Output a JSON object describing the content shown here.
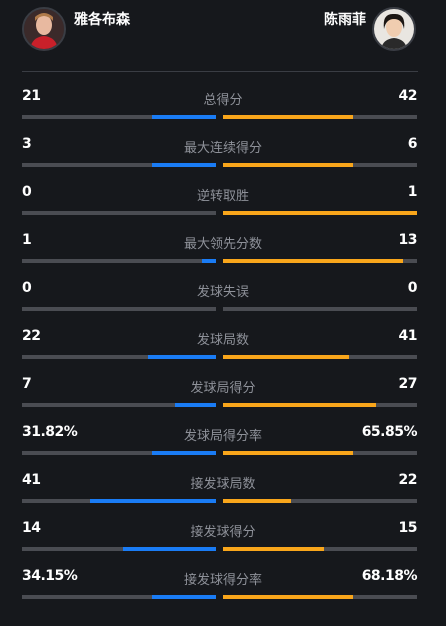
{
  "players": {
    "left": {
      "name": "雅各布森",
      "avatar_icon": "player-photo-icon"
    },
    "right": {
      "name": "陈雨菲",
      "avatar_icon": "player-photo-icon"
    }
  },
  "colors": {
    "left_bar": "#1a7cf5",
    "right_bar": "#f9a61b",
    "track": "#4a4c52",
    "background": "#16181c"
  },
  "stats": [
    {
      "label": "总得分",
      "left": "21",
      "right": "42",
      "left_pct": 0.33,
      "right_pct": 0.67
    },
    {
      "label": "最大连续得分",
      "left": "3",
      "right": "6",
      "left_pct": 0.33,
      "right_pct": 0.67
    },
    {
      "label": "逆转取胜",
      "left": "0",
      "right": "1",
      "left_pct": 0.0,
      "right_pct": 1.0
    },
    {
      "label": "最大领先分数",
      "left": "1",
      "right": "13",
      "left_pct": 0.07,
      "right_pct": 0.93
    },
    {
      "label": "发球失误",
      "left": "0",
      "right": "0",
      "left_pct": 0.0,
      "right_pct": 0.0
    },
    {
      "label": "发球局数",
      "left": "22",
      "right": "41",
      "left_pct": 0.35,
      "right_pct": 0.65
    },
    {
      "label": "发球局得分",
      "left": "7",
      "right": "27",
      "left_pct": 0.21,
      "right_pct": 0.79
    },
    {
      "label": "发球局得分率",
      "left": "31.82%",
      "right": "65.85%",
      "left_pct": 0.33,
      "right_pct": 0.67
    },
    {
      "label": "接发球局数",
      "left": "41",
      "right": "22",
      "left_pct": 0.65,
      "right_pct": 0.35
    },
    {
      "label": "接发球得分",
      "left": "14",
      "right": "15",
      "left_pct": 0.48,
      "right_pct": 0.52
    },
    {
      "label": "接发球得分率",
      "left": "34.15%",
      "right": "68.18%",
      "left_pct": 0.33,
      "right_pct": 0.67
    }
  ]
}
